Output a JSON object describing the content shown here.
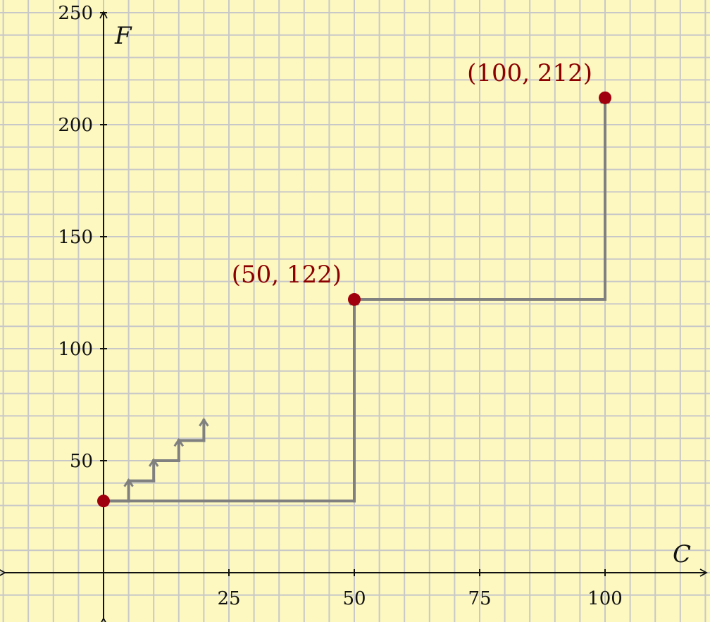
{
  "chart_data": {
    "type": "line",
    "xlabel": "C",
    "ylabel": "F",
    "xlim": [
      -20,
      120
    ],
    "ylim": [
      -10,
      250
    ],
    "x_ticks": [
      25,
      50,
      75,
      100
    ],
    "y_ticks": [
      50,
      100,
      150,
      200,
      250
    ],
    "grid": true,
    "colors": {
      "background": "#fdf8c0",
      "grid": "#c8c8c8",
      "axis": "#111111",
      "path": "#808080",
      "point": "#a0000e",
      "label": "#8b0000"
    },
    "points": [
      {
        "x": 0,
        "y": 32,
        "label": ""
      },
      {
        "x": 50,
        "y": 122,
        "label": "(50, 122)"
      },
      {
        "x": 100,
        "y": 212,
        "label": "(100, 212)"
      }
    ],
    "step_path": [
      {
        "x": 0,
        "y": 32
      },
      {
        "x": 50,
        "y": 32
      },
      {
        "x": 50,
        "y": 122
      },
      {
        "x": 100,
        "y": 122
      },
      {
        "x": 100,
        "y": 212
      }
    ],
    "slope_staircase": [
      {
        "x": 0,
        "y": 32
      },
      {
        "x": 5,
        "y": 32
      },
      {
        "x": 5,
        "y": 41
      },
      {
        "x": 10,
        "y": 41
      },
      {
        "x": 10,
        "y": 50
      },
      {
        "x": 15,
        "y": 50
      },
      {
        "x": 15,
        "y": 59
      },
      {
        "x": 20,
        "y": 59
      },
      {
        "x": 20,
        "y": 68
      }
    ]
  }
}
